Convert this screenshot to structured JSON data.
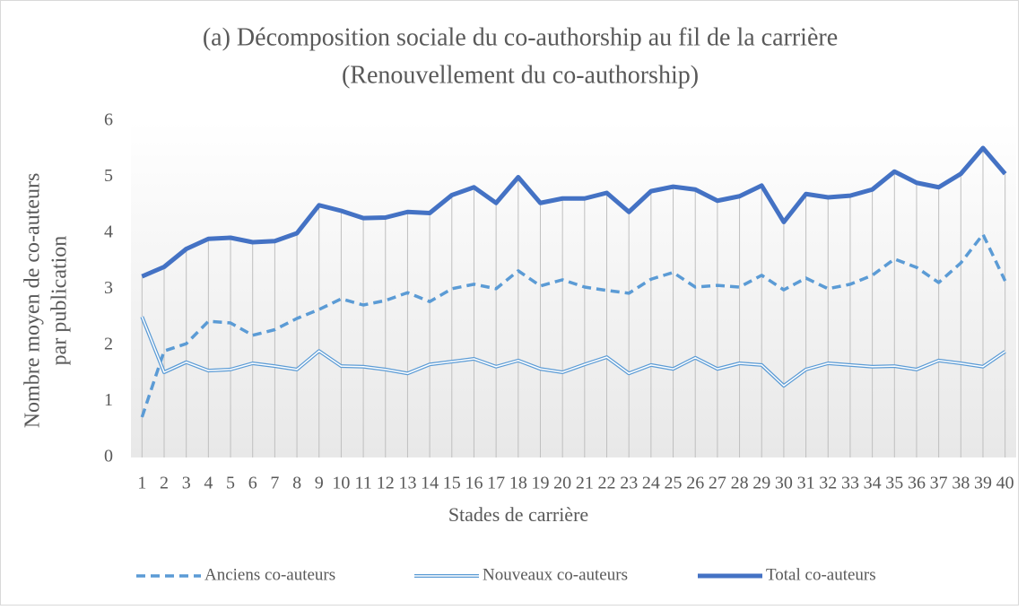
{
  "chart_data": {
    "type": "line",
    "title": "(a) Décomposition sociale du co-authorship au fil de la carrière",
    "subtitle": "(Renouvellement du co-authorship)",
    "xlabel": "Stades de carrière",
    "ylabel": [
      "Nombre moyen de co-auteurs",
      "par publication"
    ],
    "categories": [
      "1",
      "2",
      "3",
      "4",
      "5",
      "6",
      "7",
      "8",
      "9",
      "10",
      "11",
      "12",
      "13",
      "14",
      "15",
      "16",
      "17",
      "18",
      "19",
      "20",
      "21",
      "22",
      "23",
      "24",
      "25",
      "26",
      "27",
      "28",
      "29",
      "30",
      "31",
      "32",
      "33",
      "34",
      "35",
      "36",
      "37",
      "38",
      "39",
      "40"
    ],
    "ylim": [
      0,
      6
    ],
    "yticks": [
      0,
      1,
      2,
      3,
      4,
      5,
      6
    ],
    "legend": "bottom",
    "drop_lines": true,
    "series": [
      {
        "name": "Anciens co-auteurs",
        "color": "#5b9bd5",
        "style": "dashed",
        "values": [
          0.72,
          1.9,
          2.03,
          2.43,
          2.4,
          2.18,
          2.28,
          2.48,
          2.64,
          2.83,
          2.72,
          2.8,
          2.94,
          2.78,
          3.01,
          3.09,
          3.01,
          3.33,
          3.06,
          3.17,
          3.04,
          2.98,
          2.93,
          3.18,
          3.3,
          3.04,
          3.07,
          3.04,
          3.25,
          2.99,
          3.2,
          3.01,
          3.09,
          3.25,
          3.54,
          3.39,
          3.12,
          3.47,
          3.98,
          3.15
        ]
      },
      {
        "name": "Nouveaux co-auteurs",
        "color": "#5b9bd5",
        "style": "double",
        "values": [
          2.51,
          1.52,
          1.7,
          1.55,
          1.57,
          1.68,
          1.63,
          1.57,
          1.9,
          1.63,
          1.62,
          1.57,
          1.5,
          1.66,
          1.71,
          1.76,
          1.62,
          1.73,
          1.58,
          1.52,
          1.66,
          1.79,
          1.5,
          1.65,
          1.58,
          1.78,
          1.58,
          1.68,
          1.65,
          1.28,
          1.57,
          1.68,
          1.65,
          1.62,
          1.63,
          1.57,
          1.73,
          1.68,
          1.62,
          1.89
        ]
      },
      {
        "name": "Total co-auteurs",
        "color": "#4472c4",
        "style": "solid",
        "values": [
          3.23,
          3.4,
          3.72,
          3.9,
          3.92,
          3.84,
          3.86,
          4.0,
          4.5,
          4.4,
          4.27,
          4.28,
          4.38,
          4.36,
          4.68,
          4.82,
          4.54,
          5.0,
          4.54,
          4.62,
          4.62,
          4.72,
          4.38,
          4.75,
          4.83,
          4.78,
          4.58,
          4.66,
          4.85,
          4.2,
          4.7,
          4.64,
          4.67,
          4.78,
          5.1,
          4.9,
          4.82,
          5.06,
          5.52,
          5.06
        ]
      }
    ]
  }
}
